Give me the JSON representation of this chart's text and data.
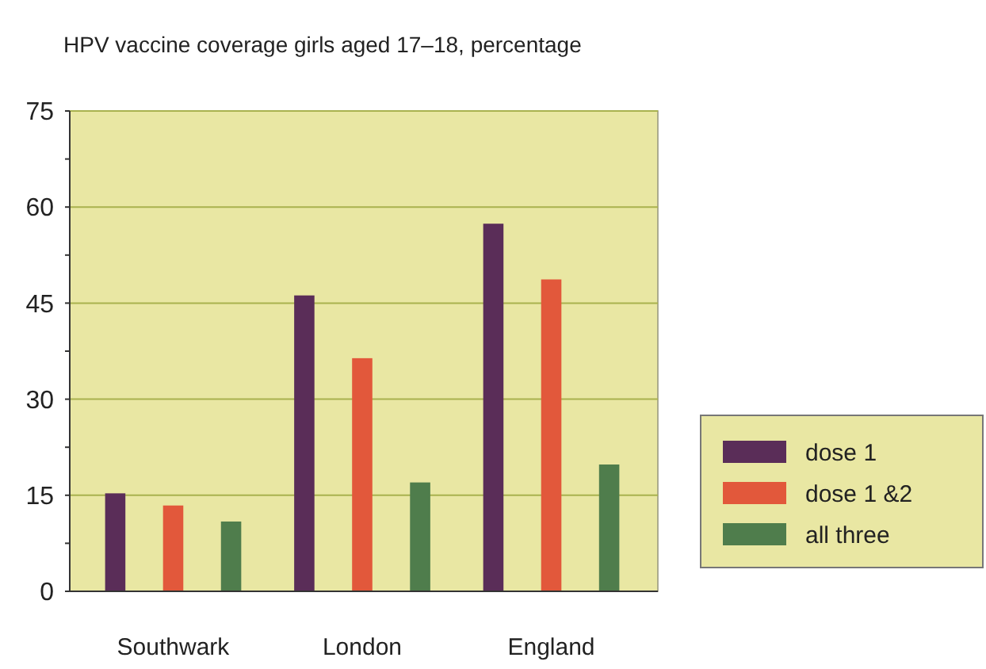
{
  "chart_data": {
    "type": "bar",
    "title": "HPV vaccine coverage girls aged 17–18, percentage",
    "categories": [
      "Southwark",
      "London",
      "England"
    ],
    "series": [
      {
        "name": "dose 1",
        "color": "#5a2d58",
        "values": [
          15.3,
          46.2,
          57.4
        ]
      },
      {
        "name": "dose 1 &2",
        "color": "#e2583b",
        "values": [
          13.4,
          36.4,
          48.7
        ]
      },
      {
        "name": "all three",
        "color": "#4f7d4c",
        "values": [
          10.9,
          17.0,
          19.8
        ]
      }
    ],
    "ylim": [
      0,
      75
    ],
    "yticks": [
      0,
      {
        "value": 7.5,
        "label": null
      },
      15,
      {
        "value": 22.5,
        "label": null
      },
      30,
      {
        "value": 37.5,
        "label": null
      },
      45,
      {
        "value": 52.5,
        "label": null
      },
      60,
      {
        "value": 67.5,
        "label": null
      },
      75
    ],
    "grid": "y",
    "legend": "right"
  }
}
